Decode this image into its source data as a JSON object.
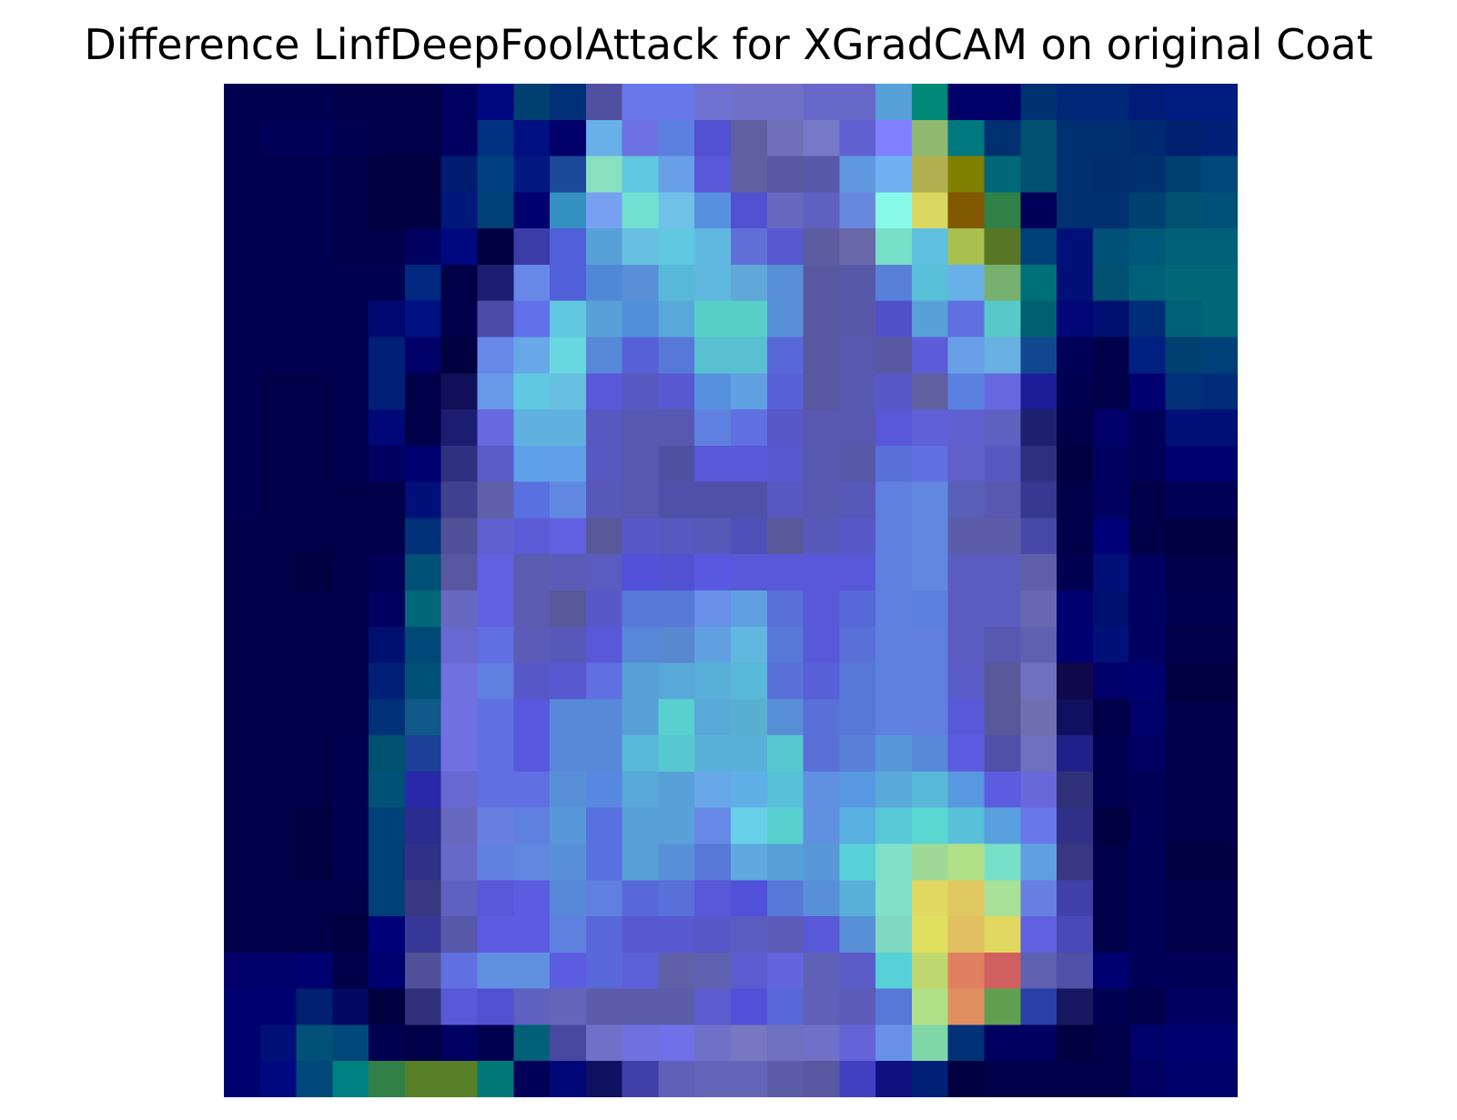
{
  "chart_data": {
    "type": "heatmap",
    "title": "Difference LinfDeepFoolAttack for XGradCAM on original Coat",
    "xlabel": "",
    "ylabel": "",
    "axes_visible": false,
    "rows": 28,
    "cols": 28,
    "legend": "none",
    "grid": false,
    "colors": [
      [
        "#000050",
        "#000050",
        "#000050",
        "#000048",
        "#000048",
        "#000048",
        "#000060",
        "#000880",
        "#004070",
        "#003078",
        "#5050a0",
        "#6878e8",
        "#6878e8",
        "#7070d0",
        "#7070c8",
        "#7070c8",
        "#6868c8",
        "#6868c8",
        "#58a0d8",
        "#008878",
        "#000068",
        "#000068",
        "#003070",
        "#002878",
        "#002878",
        "#001c78",
        "#001c80",
        "#001c80"
      ],
      [
        "#000050",
        "#000058",
        "#000058",
        "#000050",
        "#000048",
        "#000048",
        "#000060",
        "#003080",
        "#001080",
        "#000068",
        "#68b0e8",
        "#6c70e0",
        "#5c80e0",
        "#5050d0",
        "#6060a0",
        "#7070b8",
        "#7878c8",
        "#6060d0",
        "#8080ff",
        "#90b870",
        "#007880",
        "#003070",
        "#005070",
        "#003070",
        "#003070",
        "#002a70",
        "#002070",
        "#002078"
      ],
      [
        "#000050",
        "#000050",
        "#000050",
        "#000048",
        "#000040",
        "#000040",
        "#001c70",
        "#004080",
        "#001880",
        "#1c4898",
        "#88e0c0",
        "#60c8e0",
        "#68a0e8",
        "#5858d8",
        "#6060a0",
        "#5858a0",
        "#5858a8",
        "#6098e0",
        "#70b0f0",
        "#b0b050",
        "#808000",
        "#006878",
        "#005070",
        "#003070",
        "#002c70",
        "#003070",
        "#004070",
        "#004878"
      ],
      [
        "#000050",
        "#000050",
        "#000050",
        "#000048",
        "#000040",
        "#000040",
        "#001878",
        "#004078",
        "#000070",
        "#3490c0",
        "#78a0f0",
        "#70e0d0",
        "#70c0e8",
        "#5890e0",
        "#5050d0",
        "#6868c0",
        "#6060c0",
        "#6888e0",
        "#88f8e8",
        "#d8d860",
        "#805800",
        "#308048",
        "#000058",
        "#003070",
        "#003070",
        "#004070",
        "#005070",
        "#005078"
      ],
      [
        "#000050",
        "#000050",
        "#000050",
        "#000048",
        "#000048",
        "#000060",
        "#000880",
        "#000040",
        "#3c3ca8",
        "#5060d8",
        "#58a0d8",
        "#68c0e0",
        "#60c8e0",
        "#60b8e0",
        "#6070d8",
        "#5858d0",
        "#5c5ca0",
        "#6868a8",
        "#78e0c8",
        "#60c0e0",
        "#a8c050",
        "#587828",
        "#004078",
        "#001078",
        "#005078",
        "#005878",
        "#006078",
        "#006078"
      ],
      [
        "#000050",
        "#000050",
        "#000050",
        "#000050",
        "#000050",
        "#002880",
        "#000048",
        "#1c1c70",
        "#6888e8",
        "#5060d8",
        "#5088d8",
        "#5890d8",
        "#58b8d8",
        "#60b8e0",
        "#60a8d8",
        "#5890d8",
        "#5858a0",
        "#5858a8",
        "#5880d8",
        "#58c0d8",
        "#68b0e8",
        "#78b070",
        "#007078",
        "#001078",
        "#005070",
        "#006078",
        "#006878",
        "#006878"
      ],
      [
        "#000050",
        "#000050",
        "#000050",
        "#000050",
        "#000870",
        "#001080",
        "#000048",
        "#4c4ca8",
        "#6070e8",
        "#60c8e0",
        "#58a0d8",
        "#5090d8",
        "#58a8d8",
        "#58d0c8",
        "#58d0c8",
        "#5890d8",
        "#5858a0",
        "#5858a8",
        "#5050c8",
        "#58a0d8",
        "#6070e0",
        "#58c8c8",
        "#006070",
        "#000878",
        "#001070",
        "#002c78",
        "#006078",
        "#006878"
      ],
      [
        "#000050",
        "#000050",
        "#000050",
        "#000050",
        "#002078",
        "#000068",
        "#000040",
        "#6888e8",
        "#68a8e8",
        "#68d8e0",
        "#5888d8",
        "#5860d8",
        "#5878d8",
        "#58c0d0",
        "#58c0d0",
        "#5868d8",
        "#5858a0",
        "#5858b0",
        "#5858a0",
        "#5c5cd8",
        "#68a0e8",
        "#68b0e0",
        "#104890",
        "#000058",
        "#000048",
        "#002080",
        "#004070",
        "#004078"
      ],
      [
        "#000050",
        "#000048",
        "#000048",
        "#000050",
        "#002078",
        "#000048",
        "#101058",
        "#6898e8",
        "#60c8e0",
        "#68c0e0",
        "#5858d8",
        "#5858c0",
        "#5858d0",
        "#5890e0",
        "#60a0e0",
        "#5860d8",
        "#5858a0",
        "#5858b0",
        "#5858c8",
        "#6060a0",
        "#5a80e0",
        "#6868e0",
        "#1c1c98",
        "#000050",
        "#000048",
        "#000070",
        "#003078",
        "#002c78"
      ],
      [
        "#000050",
        "#000048",
        "#000048",
        "#000050",
        "#000878",
        "#000048",
        "#1c1c70",
        "#6868e0",
        "#60b0e0",
        "#60b0e0",
        "#5858c0",
        "#5858b0",
        "#5858b0",
        "#6080e0",
        "#6070e0",
        "#5858c8",
        "#5858b0",
        "#5858b0",
        "#5858d8",
        "#6060d8",
        "#6060d0",
        "#6060c0",
        "#202070",
        "#000048",
        "#000068",
        "#000058",
        "#001078",
        "#001078"
      ],
      [
        "#000050",
        "#000048",
        "#000048",
        "#000050",
        "#000060",
        "#000070",
        "#303080",
        "#5c5cc8",
        "#60a0e8",
        "#60a0e8",
        "#5858c0",
        "#5858b0",
        "#5050a0",
        "#5858d8",
        "#5858d8",
        "#5858d0",
        "#5858b0",
        "#5858a8",
        "#5870d8",
        "#6070e0",
        "#6060c8",
        "#5858c0",
        "#303080",
        "#000040",
        "#000060",
        "#000058",
        "#000070",
        "#000070"
      ],
      [
        "#000050",
        "#000048",
        "#000048",
        "#000048",
        "#000048",
        "#001078",
        "#404090",
        "#6060a8",
        "#5870e0",
        "#6088e0",
        "#5858b8",
        "#5858b0",
        "#5050a8",
        "#5050a8",
        "#5050a8",
        "#5858c0",
        "#5858b0",
        "#5858b8",
        "#6080e0",
        "#6088e0",
        "#5860b8",
        "#5858b0",
        "#383890",
        "#000048",
        "#000060",
        "#000048",
        "#000058",
        "#000058"
      ],
      [
        "#000048",
        "#000048",
        "#000048",
        "#000048",
        "#000048",
        "#003078",
        "#505098",
        "#6060d0",
        "#5c5cd8",
        "#6060e0",
        "#585898",
        "#5858c8",
        "#5858c0",
        "#5858b8",
        "#5050b8",
        "#585898",
        "#5858b8",
        "#5858c8",
        "#6080e0",
        "#6088e0",
        "#5c5ca8",
        "#5c5ca8",
        "#4848a8",
        "#000048",
        "#000078",
        "#000048",
        "#000040",
        "#000040"
      ],
      [
        "#000048",
        "#000048",
        "#000040",
        "#000048",
        "#000058",
        "#005078",
        "#5858a0",
        "#6060e0",
        "#5c5cb0",
        "#5c5cb8",
        "#5c5cc0",
        "#5050d8",
        "#5050d0",
        "#5858e0",
        "#5858d8",
        "#5858d8",
        "#5858d8",
        "#5858d8",
        "#6080e0",
        "#6088e0",
        "#5c5cc0",
        "#5c5cc0",
        "#6060a8",
        "#000050",
        "#001078",
        "#000060",
        "#000048",
        "#000048"
      ],
      [
        "#000048",
        "#000048",
        "#000048",
        "#000048",
        "#000060",
        "#006878",
        "#6868c0",
        "#6060e0",
        "#5c5cb0",
        "#585898",
        "#5858c8",
        "#5878d8",
        "#5878d8",
        "#6890e8",
        "#60a0e0",
        "#5870d8",
        "#5858d8",
        "#5868d8",
        "#6080e0",
        "#5c80e0",
        "#5c5cc0",
        "#5c5cc0",
        "#6868b0",
        "#000070",
        "#001070",
        "#000060",
        "#000050",
        "#000050"
      ],
      [
        "#000048",
        "#000048",
        "#000048",
        "#000048",
        "#001070",
        "#004878",
        "#6868d0",
        "#6070e0",
        "#5c5cb8",
        "#5858b8",
        "#5858d8",
        "#5888d8",
        "#5888d0",
        "#60a0e0",
        "#60b8e0",
        "#5878d8",
        "#5858d8",
        "#5870d8",
        "#6080e0",
        "#6080e0",
        "#5c5cc0",
        "#5858b0",
        "#6060b0",
        "#000070",
        "#001078",
        "#000060",
        "#000048",
        "#000048"
      ],
      [
        "#000048",
        "#000048",
        "#000048",
        "#000048",
        "#002078",
        "#005078",
        "#7070e0",
        "#6080e0",
        "#5858c8",
        "#5858d0",
        "#6070e0",
        "#58a0d8",
        "#58a8d8",
        "#58b0d8",
        "#58b8d8",
        "#5870d8",
        "#5860d8",
        "#5878d8",
        "#6080e0",
        "#6080e0",
        "#5c5cc8",
        "#585898",
        "#7070c0",
        "#100848",
        "#000068",
        "#000070",
        "#000040",
        "#000040"
      ],
      [
        "#000048",
        "#000048",
        "#000048",
        "#000048",
        "#003078",
        "#105888",
        "#7070e0",
        "#6070e0",
        "#5858e0",
        "#5888d8",
        "#5888d8",
        "#58a0d8",
        "#58d0d0",
        "#58a8d8",
        "#58b0d0",
        "#5890d8",
        "#5870d8",
        "#5878d8",
        "#6080e0",
        "#6080e0",
        "#5858d8",
        "#585898",
        "#7070b0",
        "#101060",
        "#000048",
        "#000068",
        "#000048",
        "#000048"
      ],
      [
        "#000048",
        "#000048",
        "#000048",
        "#000050",
        "#005070",
        "#1c4098",
        "#7070e0",
        "#6070e0",
        "#5858e0",
        "#5888d8",
        "#5888d8",
        "#58b8d8",
        "#58c8d0",
        "#58b0d8",
        "#58b0d8",
        "#58c8d0",
        "#5870d8",
        "#5880d8",
        "#5898d8",
        "#5888d8",
        "#5c5ce0",
        "#5050a8",
        "#7070c0",
        "#202088",
        "#000050",
        "#000060",
        "#000048",
        "#000048"
      ],
      [
        "#000048",
        "#000048",
        "#000048",
        "#000050",
        "#005078",
        "#2828a8",
        "#6868d0",
        "#6070e0",
        "#6070e0",
        "#5890d8",
        "#5888e0",
        "#58a8d8",
        "#58a0d8",
        "#68a8e8",
        "#60b0e8",
        "#58c0d8",
        "#6090e0",
        "#5898e0",
        "#58a8d8",
        "#58b8d8",
        "#5898e0",
        "#5c5ce0",
        "#6868d8",
        "#303078",
        "#000050",
        "#000058",
        "#000048",
        "#000048"
      ],
      [
        "#000048",
        "#000048",
        "#000040",
        "#000050",
        "#004078",
        "#2c2c90",
        "#6868c0",
        "#6880e0",
        "#6080e0",
        "#5898d8",
        "#5870e0",
        "#58a0d8",
        "#58a0d8",
        "#6888e8",
        "#68d0e8",
        "#58d0d0",
        "#6090e0",
        "#58b0e0",
        "#58c8d8",
        "#58d8d0",
        "#58c0d8",
        "#58a0e0",
        "#6878e8",
        "#303088",
        "#000040",
        "#000058",
        "#000048",
        "#000048"
      ],
      [
        "#000048",
        "#000048",
        "#000040",
        "#000050",
        "#004078",
        "#303088",
        "#6868c8",
        "#6080e0",
        "#6088e0",
        "#5890d8",
        "#5870e0",
        "#58a0d8",
        "#5890d8",
        "#5878d8",
        "#60a8e0",
        "#58a0d8",
        "#5898d8",
        "#58d0d8",
        "#80e0c8",
        "#a0d898",
        "#b0e088",
        "#78e0c8",
        "#60a0e0",
        "#383880",
        "#000048",
        "#000058",
        "#000040",
        "#000040"
      ],
      [
        "#000048",
        "#000048",
        "#000048",
        "#000048",
        "#004078",
        "#383880",
        "#6060c0",
        "#5858d8",
        "#5c5ce0",
        "#5888d8",
        "#6080e0",
        "#5868d8",
        "#5870d8",
        "#5858d8",
        "#5050d8",
        "#5878d8",
        "#5890d8",
        "#58b0d8",
        "#80e0c8",
        "#e0d860",
        "#e0c860",
        "#a8e098",
        "#6880e0",
        "#4040a8",
        "#000048",
        "#000058",
        "#000048",
        "#000048"
      ],
      [
        "#000048",
        "#000048",
        "#000048",
        "#000040",
        "#000078",
        "#383898",
        "#5858a8",
        "#5c5ce0",
        "#5c5ce0",
        "#6080e0",
        "#5868d8",
        "#5858d0",
        "#5858d0",
        "#5858c8",
        "#5c5cc0",
        "#5c5cb8",
        "#5858d8",
        "#5890d8",
        "#80d8c0",
        "#e0e060",
        "#e0c060",
        "#e0d860",
        "#6060e0",
        "#4848b8",
        "#000048",
        "#000058",
        "#000048",
        "#000048"
      ],
      [
        "#000068",
        "#000068",
        "#000070",
        "#000048",
        "#000070",
        "#505098",
        "#6070e0",
        "#6090e0",
        "#6090e0",
        "#5c5ce0",
        "#5868d8",
        "#5c60d8",
        "#6060a8",
        "#6060b0",
        "#5c5cd0",
        "#6464e0",
        "#6060b8",
        "#5c5cc8",
        "#58d0d8",
        "#c0d870",
        "#e08060",
        "#d06060",
        "#6060b0",
        "#5050a8",
        "#000070",
        "#000058",
        "#000058",
        "#000058"
      ],
      [
        "#000070",
        "#000070",
        "#002070",
        "#000860",
        "#000040",
        "#303078",
        "#5858d8",
        "#5050d0",
        "#6060c0",
        "#6464b8",
        "#5c5ca8",
        "#5c5ca8",
        "#5c5ca8",
        "#5c5cd0",
        "#5050d8",
        "#5868d8",
        "#6060b8",
        "#5c5cb8",
        "#5878d8",
        "#b0e088",
        "#e09060",
        "#60a050",
        "#2840a8",
        "#181860",
        "#000050",
        "#000048",
        "#000060",
        "#000060"
      ],
      [
        "#000070",
        "#001078",
        "#005078",
        "#004878",
        "#000050",
        "#000048",
        "#000060",
        "#000050",
        "#006078",
        "#4848a0",
        "#7070c8",
        "#7070e0",
        "#7070e8",
        "#7070c8",
        "#7878c0",
        "#7070c0",
        "#7070c8",
        "#6464d8",
        "#6890e8",
        "#80d8a8",
        "#003078",
        "#000060",
        "#000060",
        "#000040",
        "#000048",
        "#000068",
        "#000070",
        "#000070"
      ],
      [
        "#000070",
        "#000880",
        "#004878",
        "#008080",
        "#308048",
        "#588028",
        "#588028",
        "#007878",
        "#000058",
        "#000878",
        "#101060",
        "#4040a8",
        "#6060b8",
        "#6464b8",
        "#6464b8",
        "#5c5ca8",
        "#5858a0",
        "#4040c0",
        "#101080",
        "#002078",
        "#000040",
        "#000048",
        "#000048",
        "#000048",
        "#000048",
        "#000060",
        "#000068",
        "#000068"
      ]
    ]
  }
}
